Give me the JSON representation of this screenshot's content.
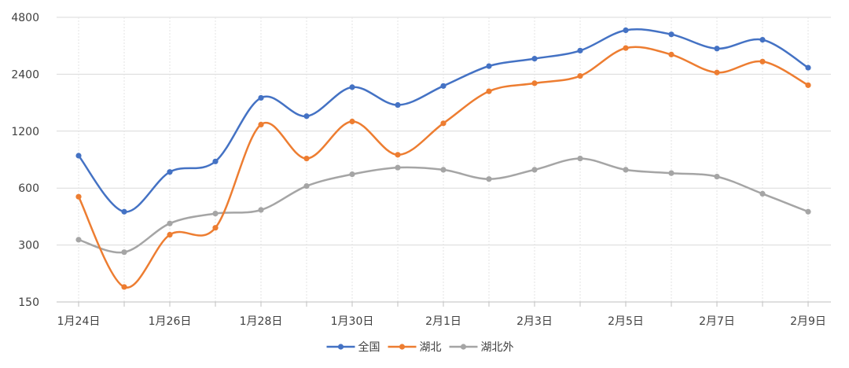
{
  "chart_data": {
    "type": "line",
    "title": "",
    "xlabel": "",
    "ylabel": "",
    "y_scale": "log",
    "ylim": [
      150,
      4800
    ],
    "y_ticks": [
      150,
      300,
      600,
      1200,
      2400,
      4800
    ],
    "y_tick_labels": [
      "150",
      "300",
      "600",
      "1200",
      "2400",
      "4800"
    ],
    "categories": [
      "1月24日",
      "1月25日",
      "1月26日",
      "1月27日",
      "1月28日",
      "1月29日",
      "1月30日",
      "1月31日",
      "2月1日",
      "2月2日",
      "2月3日",
      "2月4日",
      "2月5日",
      "2月6日",
      "2月7日",
      "2月8日",
      "2月9日"
    ],
    "x_tick_labels": [
      "1月24日",
      "",
      "1月26日",
      "",
      "1月28日",
      "",
      "1月30日",
      "",
      "2月1日",
      "",
      "2月3日",
      "",
      "2月5日",
      "",
      "2月7日",
      "",
      "2月9日"
    ],
    "grid": true,
    "legend_position": "bottom",
    "series": [
      {
        "name": "全国",
        "color": "#4472C4",
        "values": [
          890,
          450,
          730,
          830,
          1800,
          1440,
          2050,
          1650,
          2080,
          2650,
          2900,
          3200,
          4100,
          3900,
          3280,
          3650,
          2600
        ]
      },
      {
        "name": "湖北",
        "color": "#ED7D31",
        "values": [
          540,
          180,
          340,
          370,
          1300,
          860,
          1350,
          900,
          1320,
          1950,
          2150,
          2350,
          3300,
          3050,
          2450,
          2800,
          2100
        ]
      },
      {
        "name": "湖北外",
        "color": "#A5A5A5",
        "values": [
          320,
          275,
          390,
          440,
          460,
          615,
          710,
          770,
          750,
          670,
          750,
          860,
          750,
          720,
          690,
          560,
          450
        ]
      }
    ]
  }
}
